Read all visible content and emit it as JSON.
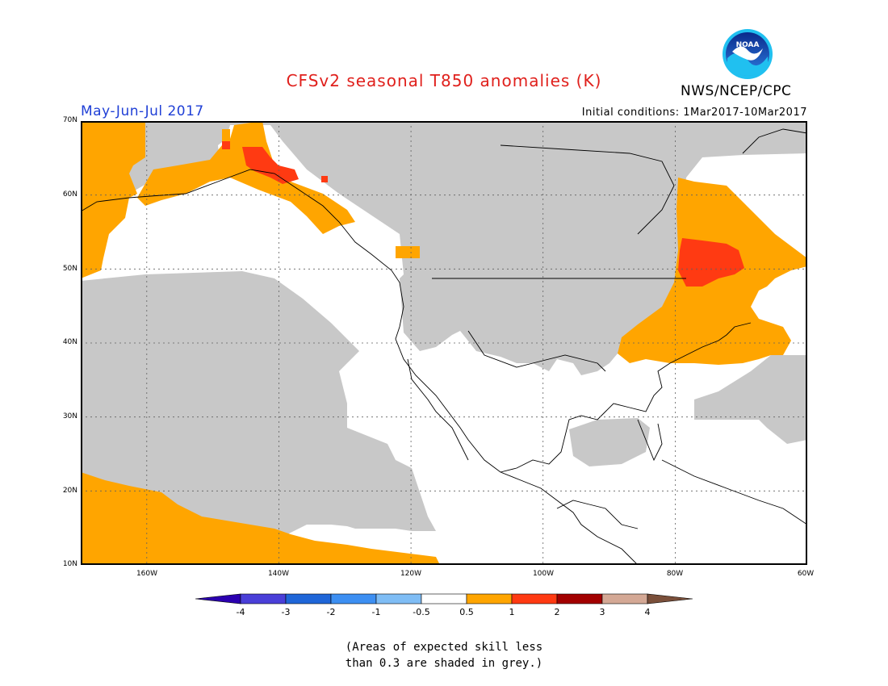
{
  "title": "CFSv2 seasonal T850 anomalies (K)",
  "period": "May-Jun-Jul 2017",
  "initial_conditions": "Initial conditions: 1Mar2017-10Mar2017",
  "agency": "NWS/NCEP/CPC",
  "logo_text": "NOAA",
  "map": {
    "region": "North America",
    "lon_range": [
      -170,
      -60
    ],
    "lat_range": [
      10,
      70
    ],
    "lat_labels": [
      "70N",
      "60N",
      "50N",
      "40N",
      "30N",
      "20N",
      "10N"
    ],
    "lon_labels": [
      "160W",
      "140W",
      "120W",
      "100W",
      "80W",
      "60W"
    ],
    "grid": "dotted",
    "features": [
      {
        "name": "Gulf of Alaska coast",
        "category": "0.5 to 1",
        "color": "#ffa500"
      },
      {
        "name": "Northern Canada / Arctic",
        "category": "low skill",
        "color": "#c8c8c8"
      },
      {
        "name": "Eastern Canada and northeastern US",
        "category": "0.5 to 1",
        "color": "#ffa500"
      },
      {
        "name": "Quebec core",
        "category": "1 to 2",
        "color": "#ff3a12"
      },
      {
        "name": "Yukon spot",
        "category": "1 to 2",
        "color": "#ff3a12"
      },
      {
        "name": "Central Pacific",
        "category": "low skill",
        "color": "#c8c8c8"
      },
      {
        "name": "Tropical Pacific south of Hawaii",
        "category": "0.5 to 1",
        "color": "#ffa500"
      },
      {
        "name": "Gulf of Mexico",
        "category": "low skill",
        "color": "#c8c8c8"
      }
    ]
  },
  "colorbar": {
    "labels": [
      "-4",
      "-3",
      "-2",
      "-1",
      "-0.5",
      "0.5",
      "1",
      "2",
      "3",
      "4"
    ],
    "colors": [
      "#2b00b0",
      "#4a3fd8",
      "#1f66d8",
      "#3d8ff2",
      "#7fbdf5",
      "#ffffff",
      "#ffa500",
      "#ff3a12",
      "#a20000",
      "#d4a895",
      "#7a4f3a"
    ]
  },
  "note": [
    "(Areas of expected skill less",
    "than 0.3 are shaded in grey.)"
  ]
}
